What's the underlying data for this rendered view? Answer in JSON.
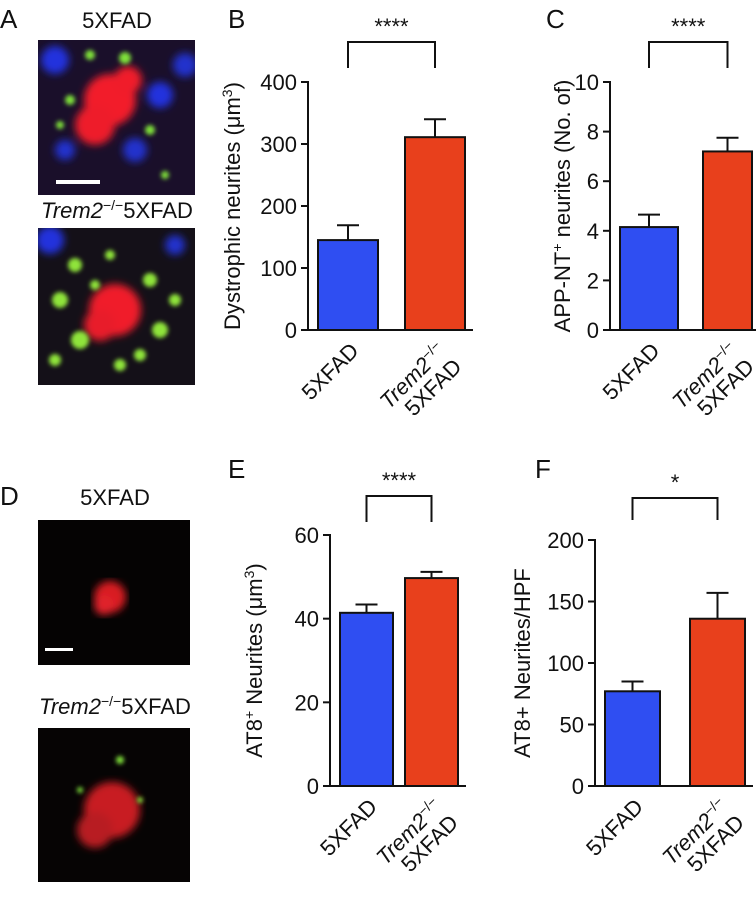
{
  "image_panels": [
    {
      "panel": "A",
      "top_label": "5XFAD",
      "bottom_label": [
        "Trem2",
        "−/−",
        "5XFAD"
      ]
    },
    {
      "panel": "D",
      "top_label": "5XFAD",
      "bottom_label": [
        "Trem2",
        "−/−",
        "5XFAD"
      ]
    }
  ],
  "chart_data": [
    {
      "type": "bar",
      "panel": "B",
      "ylabel": [
        "Dystrophic neurites (μm",
        "3",
        ")"
      ],
      "categories": [
        [
          "5XFAD"
        ],
        [
          "Trem2",
          "−/−",
          "5XFAD"
        ]
      ],
      "values": [
        145,
        311
      ],
      "errors": [
        24,
        29
      ],
      "colors": [
        "#2f4ef2",
        "#e8401c"
      ],
      "ylim": [
        0,
        400
      ],
      "yticks": [
        0,
        100,
        200,
        300,
        400
      ],
      "annotation": "****"
    },
    {
      "type": "bar",
      "panel": "C",
      "ylabel": [
        "APP-NT",
        "+",
        " neurites (No. of)"
      ],
      "categories": [
        [
          "5XFAD"
        ],
        [
          "Trem2",
          "−/−",
          "5XFAD"
        ]
      ],
      "values": [
        4.15,
        7.2
      ],
      "errors": [
        0.5,
        0.55
      ],
      "colors": [
        "#2f4ef2",
        "#e8401c"
      ],
      "ylim": [
        0,
        10
      ],
      "yticks": [
        0,
        2,
        4,
        6,
        8,
        10
      ],
      "annotation": "****"
    },
    {
      "type": "bar",
      "panel": "E",
      "ylabel": [
        "AT8",
        "+",
        " Neurites (μm",
        "3",
        ")"
      ],
      "categories": [
        [
          "5XFAD"
        ],
        [
          "Trem2",
          "−/−",
          "5XFAD"
        ]
      ],
      "values": [
        41.4,
        49.7
      ],
      "errors": [
        2,
        1.5
      ],
      "colors": [
        "#2f4ef2",
        "#e8401c"
      ],
      "ylim": [
        0,
        60
      ],
      "yticks": [
        0,
        20,
        40,
        60
      ],
      "annotation": "****"
    },
    {
      "type": "bar",
      "panel": "F",
      "ylabel": [
        "AT8+ Neurites/HPF"
      ],
      "categories": [
        [
          "5XFAD"
        ],
        [
          "Trem2",
          "−/−",
          "5XFAD"
        ]
      ],
      "values": [
        77,
        136
      ],
      "errors": [
        8,
        21
      ],
      "colors": [
        "#2f4ef2",
        "#e8401c"
      ],
      "ylim": [
        0,
        200
      ],
      "yticks": [
        0,
        50,
        100,
        150,
        200
      ],
      "annotation": "*"
    }
  ]
}
